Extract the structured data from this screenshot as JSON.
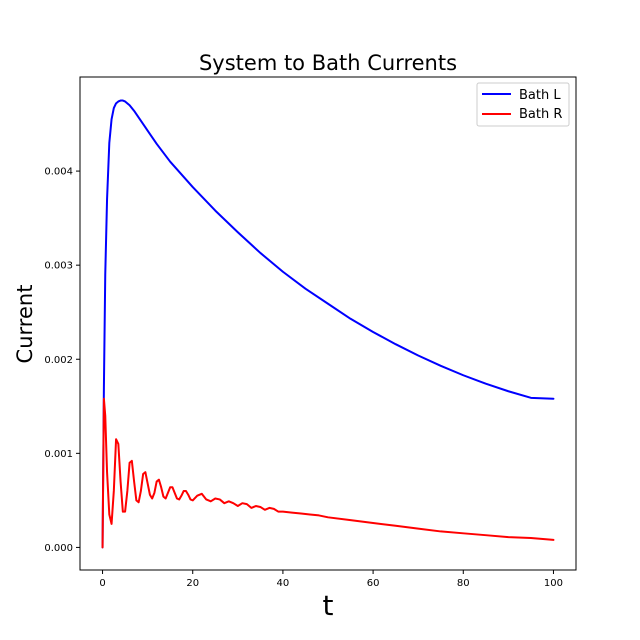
{
  "chart_data": {
    "type": "line",
    "title": "System to Bath Currents",
    "xlabel": "t",
    "ylabel": "Current",
    "xlim": [
      -5,
      105
    ],
    "ylim": [
      -0.00024,
      0.005
    ],
    "xticks": [
      0,
      20,
      40,
      60,
      80,
      100
    ],
    "xtick_labels": [
      "0",
      "20",
      "40",
      "60",
      "80",
      "100"
    ],
    "yticks": [
      0.0,
      0.001,
      0.002,
      0.003,
      0.004
    ],
    "ytick_labels": [
      "0.000",
      "0.001",
      "0.002",
      "0.003",
      "0.004"
    ],
    "grid": false,
    "legend_position": "upper right",
    "series": [
      {
        "name": "Bath L",
        "color": "#0000ff",
        "x": [
          0,
          0.3,
          0.6,
          1,
          1.5,
          2,
          2.5,
          3,
          3.5,
          4,
          4.5,
          5,
          5.5,
          6,
          7,
          8,
          10,
          12,
          15,
          20,
          25,
          30,
          35,
          40,
          45,
          50,
          55,
          60,
          65,
          70,
          75,
          80,
          85,
          90,
          95,
          100
        ],
        "y": [
          0.0,
          0.0017,
          0.0029,
          0.0037,
          0.0043,
          0.00455,
          0.00467,
          0.00472,
          0.00474,
          0.00475,
          0.00475,
          0.00474,
          0.00472,
          0.0047,
          0.00464,
          0.00457,
          0.00443,
          0.00429,
          0.0041,
          0.00383,
          0.00358,
          0.00335,
          0.00313,
          0.00293,
          0.00275,
          0.00259,
          0.00243,
          0.00229,
          0.00216,
          0.00204,
          0.00193,
          0.00183,
          0.00174,
          0.00166,
          0.00159,
          0.00158
        ]
      },
      {
        "name": "Bath R",
        "color": "#ff0000",
        "x": [
          0,
          0.3,
          0.6,
          1,
          1.5,
          2,
          2.5,
          3,
          3.5,
          4,
          4.5,
          5,
          5.5,
          6,
          6.5,
          7,
          7.5,
          8,
          8.5,
          9,
          9.5,
          10,
          10.5,
          11,
          11.5,
          12,
          12.5,
          13,
          13.5,
          14,
          14.5,
          15,
          15.5,
          16,
          16.5,
          17,
          17.5,
          18,
          18.5,
          19,
          19.5,
          20,
          21,
          22,
          23,
          24,
          25,
          26,
          27,
          28,
          29,
          30,
          31,
          32,
          33,
          34,
          35,
          36,
          37,
          38,
          39,
          40,
          42,
          44,
          46,
          48,
          50,
          55,
          60,
          65,
          70,
          75,
          80,
          85,
          90,
          95,
          100
        ],
        "y": [
          0.0,
          0.00158,
          0.0014,
          0.0008,
          0.00035,
          0.00025,
          0.0006,
          0.00115,
          0.0011,
          0.0007,
          0.00038,
          0.00038,
          0.0006,
          0.0009,
          0.00092,
          0.0007,
          0.0005,
          0.00048,
          0.0006,
          0.00078,
          0.0008,
          0.00068,
          0.00056,
          0.00052,
          0.00058,
          0.0007,
          0.00072,
          0.00064,
          0.00054,
          0.00052,
          0.00058,
          0.00064,
          0.00064,
          0.00058,
          0.00052,
          0.00051,
          0.00055,
          0.0006,
          0.0006,
          0.00056,
          0.00051,
          0.0005,
          0.00055,
          0.00057,
          0.00051,
          0.00049,
          0.00052,
          0.00051,
          0.00047,
          0.00049,
          0.00047,
          0.00044,
          0.00047,
          0.00046,
          0.00042,
          0.00044,
          0.00043,
          0.0004,
          0.00042,
          0.00041,
          0.00038,
          0.00038,
          0.00037,
          0.00036,
          0.00035,
          0.00034,
          0.00032,
          0.00029,
          0.00026,
          0.00023,
          0.0002,
          0.00017,
          0.00015,
          0.00013,
          0.00011,
          0.0001,
          8e-05
        ]
      }
    ]
  }
}
